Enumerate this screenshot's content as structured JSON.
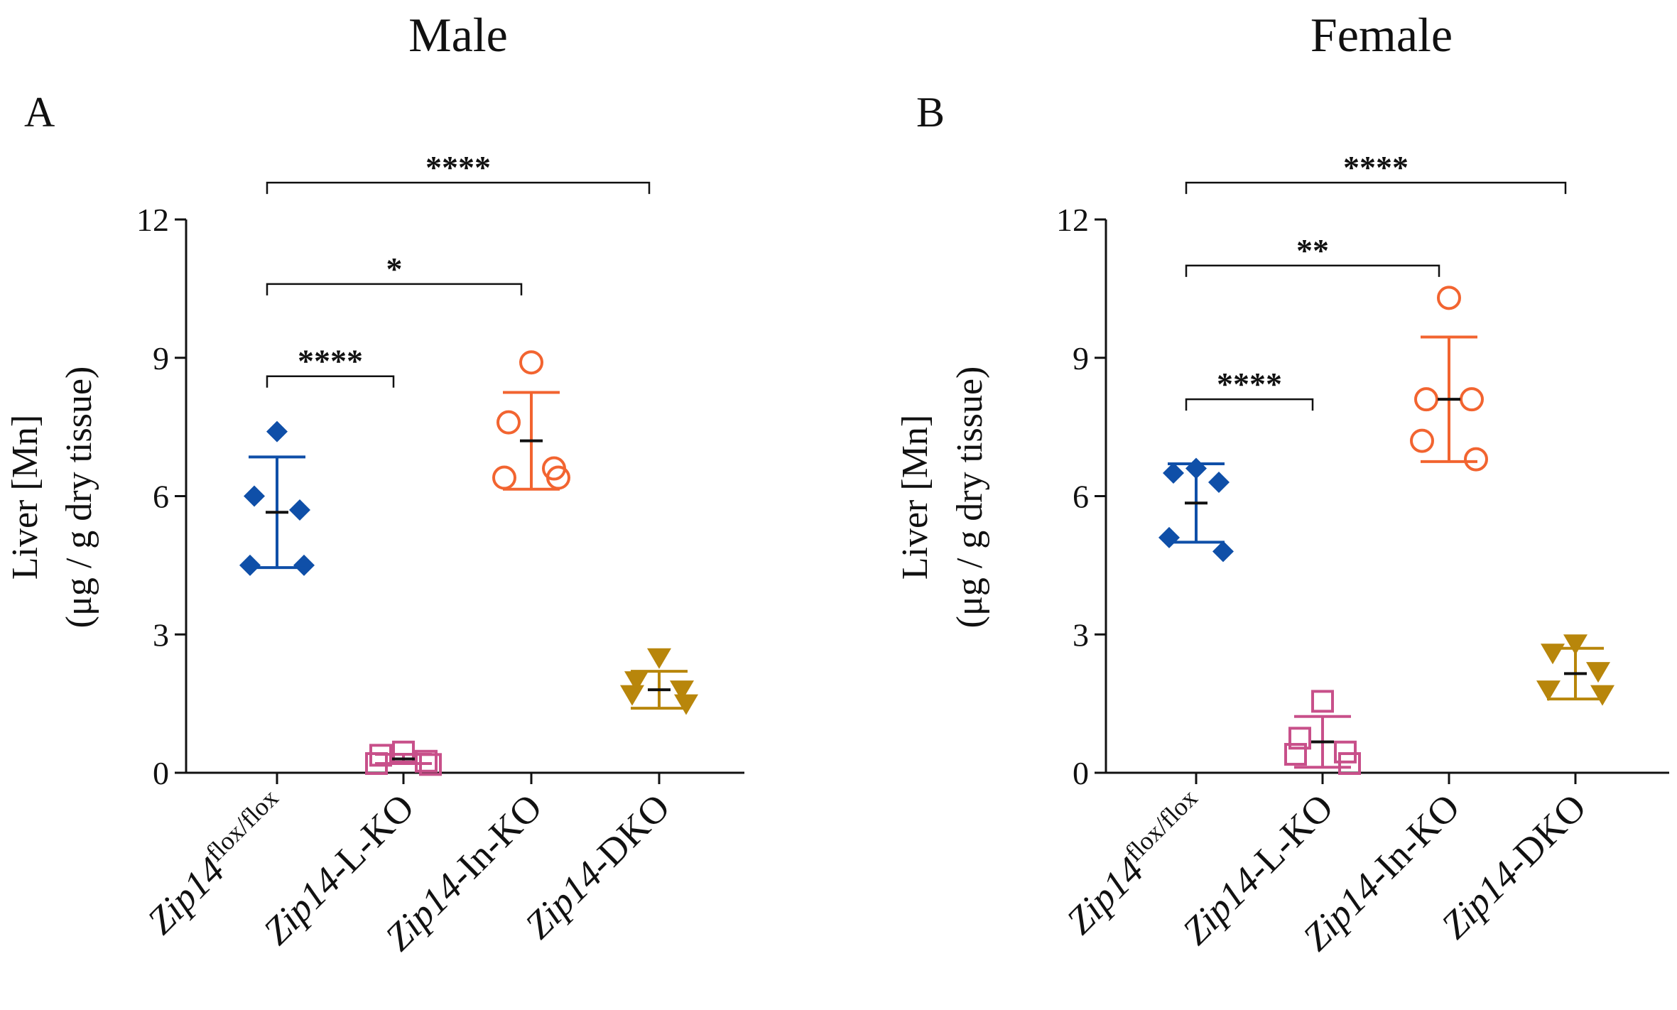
{
  "chart_data": [
    {
      "type": "scatter",
      "panel": "A",
      "title": "Male",
      "ylabel_line1": "Liver [Mn]",
      "ylabel_line2": "(μg / g dry tissue)",
      "xlabel": "",
      "ylim": [
        0,
        12
      ],
      "yticks": [
        0,
        3,
        6,
        9,
        12
      ],
      "ytick_labels": [
        "0",
        "3",
        "6",
        "9",
        "12"
      ],
      "categories": [
        {
          "prefix": "Zip14",
          "sup": "flox/flox",
          "suffix": ""
        },
        {
          "prefix": "Zip14",
          "sup": "",
          "suffix": "-L-KO"
        },
        {
          "prefix": "Zip14",
          "sup": "",
          "suffix": "-In-KO"
        },
        {
          "prefix": "Zip14",
          "sup": "",
          "suffix": "-DKO"
        }
      ],
      "series": [
        {
          "name": "Zip14 flox/flox",
          "marker": "diamond-filled",
          "color": "#0f4fa8",
          "points": [
            7.4,
            6.0,
            5.7,
            4.5,
            4.5
          ],
          "mean": 5.65,
          "sd": 1.2
        },
        {
          "name": "Zip14-L-KO",
          "marker": "square-open",
          "color": "#c8508a",
          "points": [
            0.45,
            0.38,
            0.25,
            0.2,
            0.18
          ],
          "mean": 0.3,
          "sd": 0.1
        },
        {
          "name": "Zip14-In-KO",
          "marker": "circle-open",
          "color": "#f26430",
          "points": [
            8.9,
            7.6,
            6.6,
            6.4,
            6.4
          ],
          "mean": 7.2,
          "sd": 1.05
        },
        {
          "name": "Zip14-DKO",
          "marker": "triangle-down-filled",
          "color": "#b8860b",
          "points": [
            2.5,
            2.0,
            1.8,
            1.7,
            1.5
          ],
          "mean": 1.8,
          "sd": 0.4
        }
      ],
      "significance": [
        {
          "from": 0,
          "to": 1,
          "label": "****",
          "y": 8.6
        },
        {
          "from": 0,
          "to": 2,
          "label": "*",
          "y": 10.6
        },
        {
          "from": 0,
          "to": 3,
          "label": "****",
          "y": 12.8
        }
      ]
    },
    {
      "type": "scatter",
      "panel": "B",
      "title": "Female",
      "ylabel_line1": "Liver [Mn]",
      "ylabel_line2": "(μg / g dry tissue)",
      "xlabel": "",
      "ylim": [
        0,
        12
      ],
      "yticks": [
        0,
        3,
        6,
        9,
        12
      ],
      "ytick_labels": [
        "0",
        "3",
        "6",
        "9",
        "12"
      ],
      "categories": [
        {
          "prefix": "Zip14",
          "sup": "flox/flox",
          "suffix": ""
        },
        {
          "prefix": "Zip14",
          "sup": "",
          "suffix": "-L-KO"
        },
        {
          "prefix": "Zip14",
          "sup": "",
          "suffix": "-In-KO"
        },
        {
          "prefix": "Zip14",
          "sup": "",
          "suffix": "-DKO"
        }
      ],
      "series": [
        {
          "name": "Zip14 flox/flox",
          "marker": "diamond-filled",
          "color": "#0f4fa8",
          "points": [
            6.6,
            6.5,
            6.3,
            5.1,
            4.8
          ],
          "mean": 5.85,
          "sd": 0.85
        },
        {
          "name": "Zip14-L-KO",
          "marker": "square-open",
          "color": "#c8508a",
          "points": [
            1.55,
            0.75,
            0.45,
            0.4,
            0.2
          ],
          "mean": 0.67,
          "sd": 0.55
        },
        {
          "name": "Zip14-In-KO",
          "marker": "circle-open",
          "color": "#f26430",
          "points": [
            10.3,
            8.1,
            8.1,
            7.2,
            6.8
          ],
          "mean": 8.1,
          "sd": 1.35
        },
        {
          "name": "Zip14-DKO",
          "marker": "triangle-down-filled",
          "color": "#b8860b",
          "points": [
            2.8,
            2.6,
            2.2,
            1.8,
            1.7
          ],
          "mean": 2.15,
          "sd": 0.55
        }
      ],
      "significance": [
        {
          "from": 0,
          "to": 1,
          "label": "****",
          "y": 8.1
        },
        {
          "from": 0,
          "to": 2,
          "label": "**",
          "y": 11.0
        },
        {
          "from": 0,
          "to": 3,
          "label": "****",
          "y": 12.8
        }
      ]
    }
  ]
}
